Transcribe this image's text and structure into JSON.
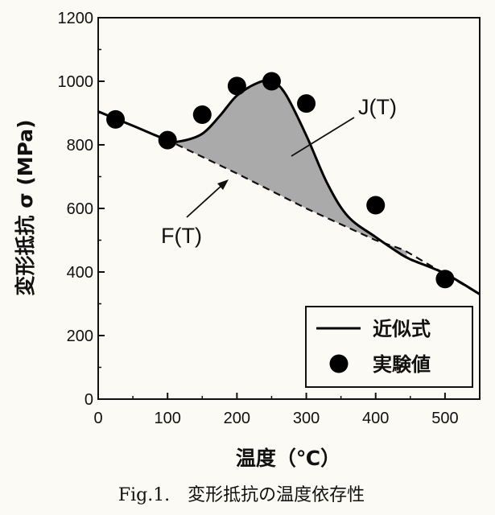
{
  "chart_data": {
    "type": "line",
    "title": "",
    "xlabel": "温度（℃）",
    "ylabel": "変形抵抗 σ (MPa)",
    "xlim": [
      0,
      550
    ],
    "ylim": [
      0,
      1200
    ],
    "xticks": [
      0,
      100,
      200,
      300,
      400,
      500
    ],
    "yticks": [
      0,
      200,
      400,
      600,
      800,
      1000,
      1200
    ],
    "grid": false,
    "legend_position": "bottom-right",
    "series": [
      {
        "name": "近似式",
        "kind": "line",
        "color": "#000000",
        "x": [
          0,
          50,
          100,
          120,
          150,
          175,
          200,
          230,
          250,
          270,
          300,
          330,
          360,
          400,
          430,
          450,
          500,
          550
        ],
        "y": [
          905,
          860,
          815,
          812,
          835,
          890,
          955,
          995,
          1000,
          960,
          830,
          680,
          575,
          510,
          465,
          440,
          395,
          330
        ]
      },
      {
        "name": "実験値",
        "kind": "scatter",
        "color": "#000000",
        "x": [
          25,
          100,
          150,
          200,
          250,
          300,
          400,
          500
        ],
        "y": [
          880,
          815,
          895,
          985,
          1000,
          930,
          610,
          378
        ]
      }
    ],
    "baseline": {
      "name": "F(T)",
      "style": "dashed",
      "x": [
        0,
        100,
        200,
        300,
        400,
        440,
        550
      ],
      "y": [
        905,
        815,
        710,
        600,
        500,
        470,
        330
      ]
    },
    "annotations": [
      {
        "text": "J(T)",
        "target": "shaded-area"
      },
      {
        "text": "F(T)",
        "target": "dashed-line"
      }
    ],
    "shaded_area": {
      "between": [
        "近似式",
        "F(T)"
      ],
      "color": "#aaaaaa"
    }
  },
  "caption": "Fig.1.　変形抵抗の温度依存性"
}
